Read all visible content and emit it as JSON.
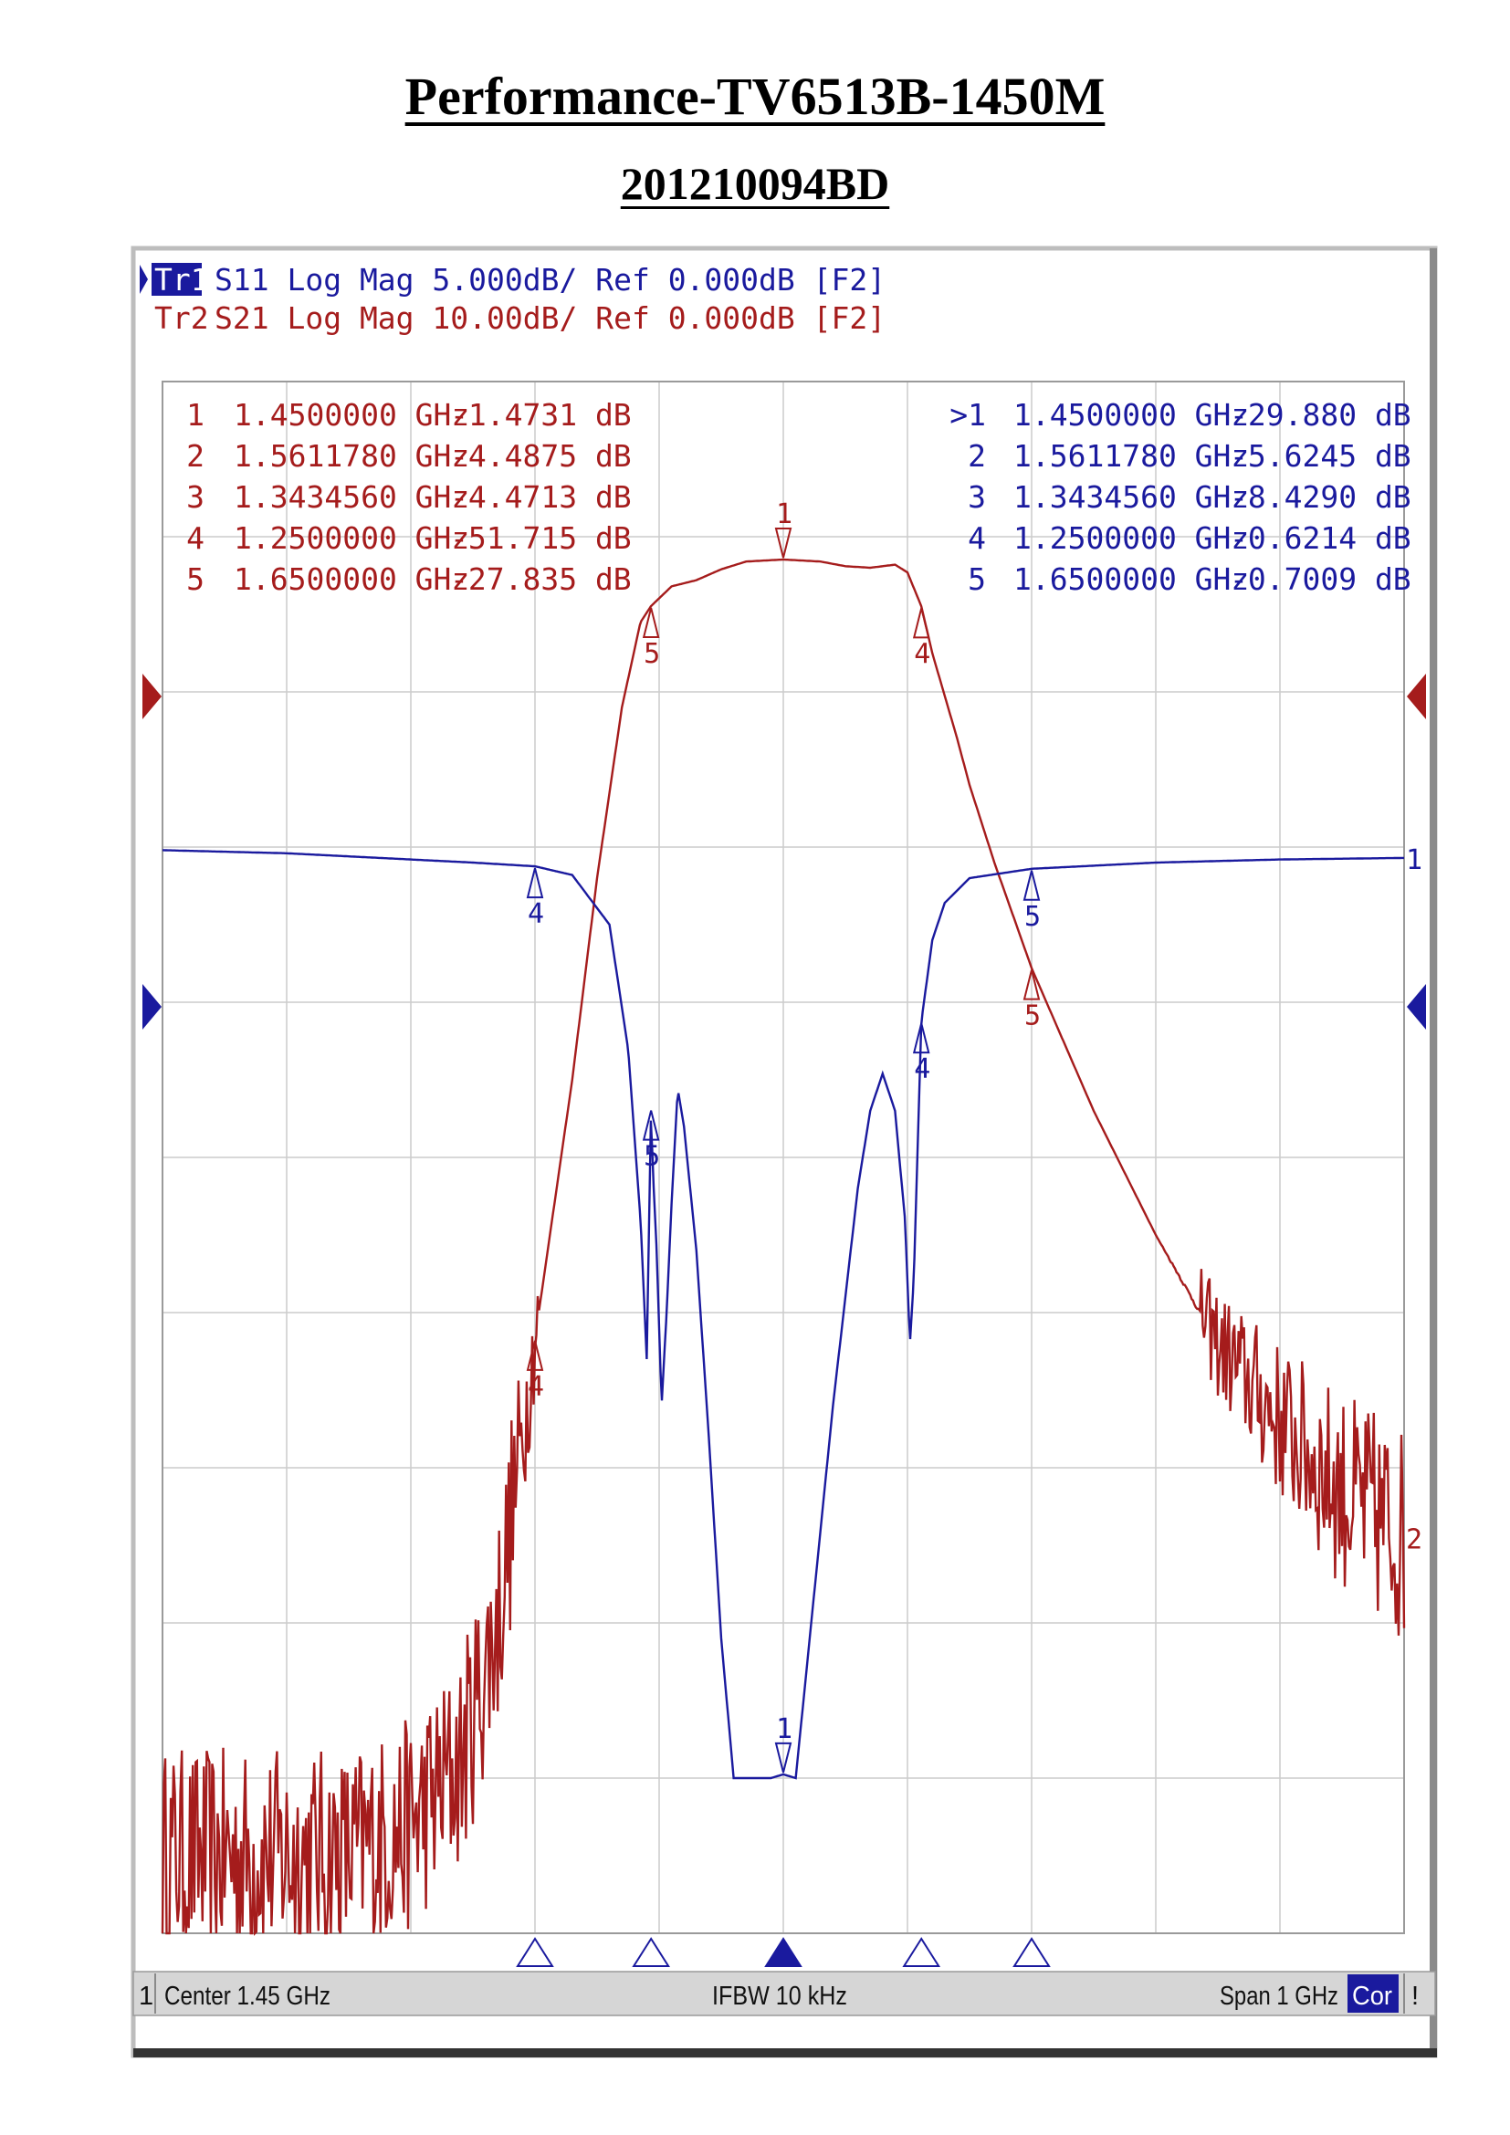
{
  "document": {
    "title": "Performance-TV6513B-1450M",
    "serial": "201210094BD"
  },
  "colors": {
    "s11": "#1a1a9e",
    "s21": "#a51c1c",
    "frame": "#c8c8c8",
    "grid": "#cccccc",
    "status_bg": "#d6d6d6",
    "cor_bg": "#1a1a9e"
  },
  "instrument": {
    "trace1_id": "Tr1",
    "trace1_desc": "S11 Log Mag 5.000dB/ Ref 0.000dB [F2]",
    "trace2_id": "Tr2",
    "trace2_desc": "S21 Log Mag 10.00dB/ Ref 0.000dB [F2]",
    "status": {
      "channel": "1",
      "center": "Center 1.45 GHz",
      "ifbw": "IFBW 10 kHz",
      "span": "Span 1 GHz",
      "cor": "Cor",
      "bang": "!"
    }
  },
  "markers_s21": [
    {
      "id": "1",
      "freq": "1.4500000 GHz",
      "value": "-1.4731 dB"
    },
    {
      "id": "2",
      "freq": "1.5611780 GHz",
      "value": "-4.4875 dB"
    },
    {
      "id": "3",
      "freq": "1.3434560 GHz",
      "value": "-4.4713 dB"
    },
    {
      "id": "4",
      "freq": "1.2500000 GHz",
      "value": "-51.715 dB"
    },
    {
      "id": "5",
      "freq": "1.6500000 GHz",
      "value": "-27.835 dB"
    }
  ],
  "markers_s11": [
    {
      "id": ">1",
      "freq": "1.4500000 GHz",
      "value": "-29.880 dB"
    },
    {
      "id": "2",
      "freq": "1.5611780 GHz",
      "value": "-5.6245 dB"
    },
    {
      "id": "3",
      "freq": "1.3434560 GHz",
      "value": "-8.4290 dB"
    },
    {
      "id": "4",
      "freq": "1.2500000 GHz",
      "value": "-0.6214 dB"
    },
    {
      "id": "5",
      "freq": "1.6500000 GHz",
      "value": "-0.7009 dB"
    }
  ],
  "chart_data": {
    "type": "line",
    "xlim": [
      0.95,
      1.95
    ],
    "x_unit": "GHz",
    "grid": true,
    "series": [
      {
        "name": "S21",
        "color": "#a51c1c",
        "scale_db_per_div": 10,
        "ref_db": 0,
        "ylim": [
          -90,
          10
        ],
        "end_label": "2",
        "points": [
          [
            0.95,
            -85
          ],
          [
            1.0,
            -85
          ],
          [
            1.05,
            -85
          ],
          [
            1.1,
            -85
          ],
          [
            1.15,
            -83
          ],
          [
            1.19,
            -79
          ],
          [
            1.22,
            -70
          ],
          [
            1.25,
            -51.7
          ],
          [
            1.28,
            -35
          ],
          [
            1.3,
            -22
          ],
          [
            1.32,
            -11
          ],
          [
            1.335,
            -5.5
          ],
          [
            1.3435,
            -4.47
          ],
          [
            1.36,
            -3.2
          ],
          [
            1.38,
            -2.8
          ],
          [
            1.4,
            -2.1
          ],
          [
            1.42,
            -1.6
          ],
          [
            1.45,
            -1.47
          ],
          [
            1.48,
            -1.6
          ],
          [
            1.5,
            -1.9
          ],
          [
            1.52,
            -2.0
          ],
          [
            1.54,
            -1.8
          ],
          [
            1.55,
            -2.3
          ],
          [
            1.5612,
            -4.49
          ],
          [
            1.57,
            -7.5
          ],
          [
            1.59,
            -13
          ],
          [
            1.6,
            -16
          ],
          [
            1.62,
            -21
          ],
          [
            1.65,
            -27.8
          ],
          [
            1.7,
            -37
          ],
          [
            1.75,
            -45
          ],
          [
            1.8,
            -52
          ],
          [
            1.85,
            -57
          ],
          [
            1.9,
            -61.5
          ],
          [
            1.95,
            -64.5
          ]
        ]
      },
      {
        "name": "S11",
        "color": "#1a1a9e",
        "scale_db_per_div": 5,
        "ref_db": 0,
        "ylim": [
          -35,
          15
        ],
        "end_label": "1",
        "points": [
          [
            0.95,
            -0.1
          ],
          [
            1.05,
            -0.2
          ],
          [
            1.15,
            -0.4
          ],
          [
            1.2,
            -0.5
          ],
          [
            1.25,
            -0.62
          ],
          [
            1.28,
            -0.9
          ],
          [
            1.31,
            -2.5
          ],
          [
            1.325,
            -6.5
          ],
          [
            1.335,
            -12
          ],
          [
            1.34,
            -16.5
          ],
          [
            1.3435,
            -8.43
          ],
          [
            1.345,
            -10.5
          ],
          [
            1.348,
            -13
          ],
          [
            1.352,
            -18
          ],
          [
            1.356,
            -15
          ],
          [
            1.36,
            -11.5
          ],
          [
            1.365,
            -7.8
          ],
          [
            1.37,
            -9
          ],
          [
            1.38,
            -13
          ],
          [
            1.39,
            -19
          ],
          [
            1.4,
            -25.5
          ],
          [
            1.41,
            -30
          ],
          [
            1.44,
            -30
          ],
          [
            1.45,
            -29.88
          ],
          [
            1.46,
            -30
          ],
          [
            1.47,
            -26
          ],
          [
            1.49,
            -18
          ],
          [
            1.51,
            -11
          ],
          [
            1.52,
            -8.5
          ],
          [
            1.53,
            -7.3
          ],
          [
            1.54,
            -8.5
          ],
          [
            1.548,
            -12
          ],
          [
            1.552,
            -16
          ],
          [
            1.555,
            -14
          ],
          [
            1.5612,
            -5.62
          ],
          [
            1.57,
            -3.0
          ],
          [
            1.58,
            -1.8
          ],
          [
            1.6,
            -1.0
          ],
          [
            1.65,
            -0.7
          ],
          [
            1.75,
            -0.5
          ],
          [
            1.85,
            -0.4
          ],
          [
            1.95,
            -0.35
          ]
        ]
      }
    ],
    "stimulus_markers": [
      1.25,
      1.3435,
      1.45,
      1.5612,
      1.65
    ],
    "active_stimulus_marker": 1.45
  }
}
